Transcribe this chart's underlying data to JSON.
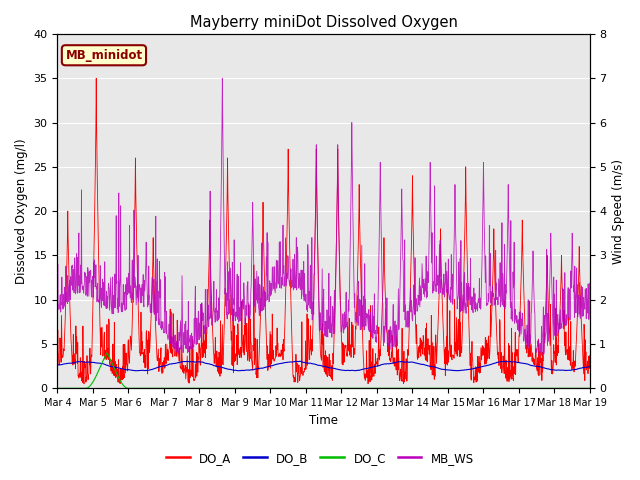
{
  "title": "Mayberry miniDot Dissolved Oxygen",
  "xlabel": "Time",
  "ylabel_left": "Dissolved Oxygen (mg/l)",
  "ylabel_right": "Wind Speed (m/s)",
  "ylim_left": [
    0,
    40
  ],
  "ylim_right": [
    0.0,
    8.0
  ],
  "yticks_left": [
    0,
    5,
    10,
    15,
    20,
    25,
    30,
    35,
    40
  ],
  "yticks_right": [
    0.0,
    1.0,
    2.0,
    3.0,
    4.0,
    5.0,
    6.0,
    7.0,
    8.0
  ],
  "xtick_labels": [
    "Mar 4",
    "Mar 5",
    "Mar 6",
    "Mar 7",
    "Mar 8",
    "Mar 9",
    "Mar 10",
    "Mar 11",
    "Mar 12",
    "Mar 13",
    "Mar 14",
    "Mar 15",
    "Mar 16",
    "Mar 17",
    "Mar 18",
    "Mar 19"
  ],
  "colors": {
    "DO_A": "#ff0000",
    "DO_B": "#0000cc",
    "DO_C": "#00bb00",
    "MB_WS": "#bb00bb",
    "bg": "#e8e8e8",
    "legend_box_bg": "#ffffcc",
    "legend_box_edge": "#8b0000"
  },
  "legend_label": "MB_minidot",
  "n_days": 15,
  "seed": 42
}
